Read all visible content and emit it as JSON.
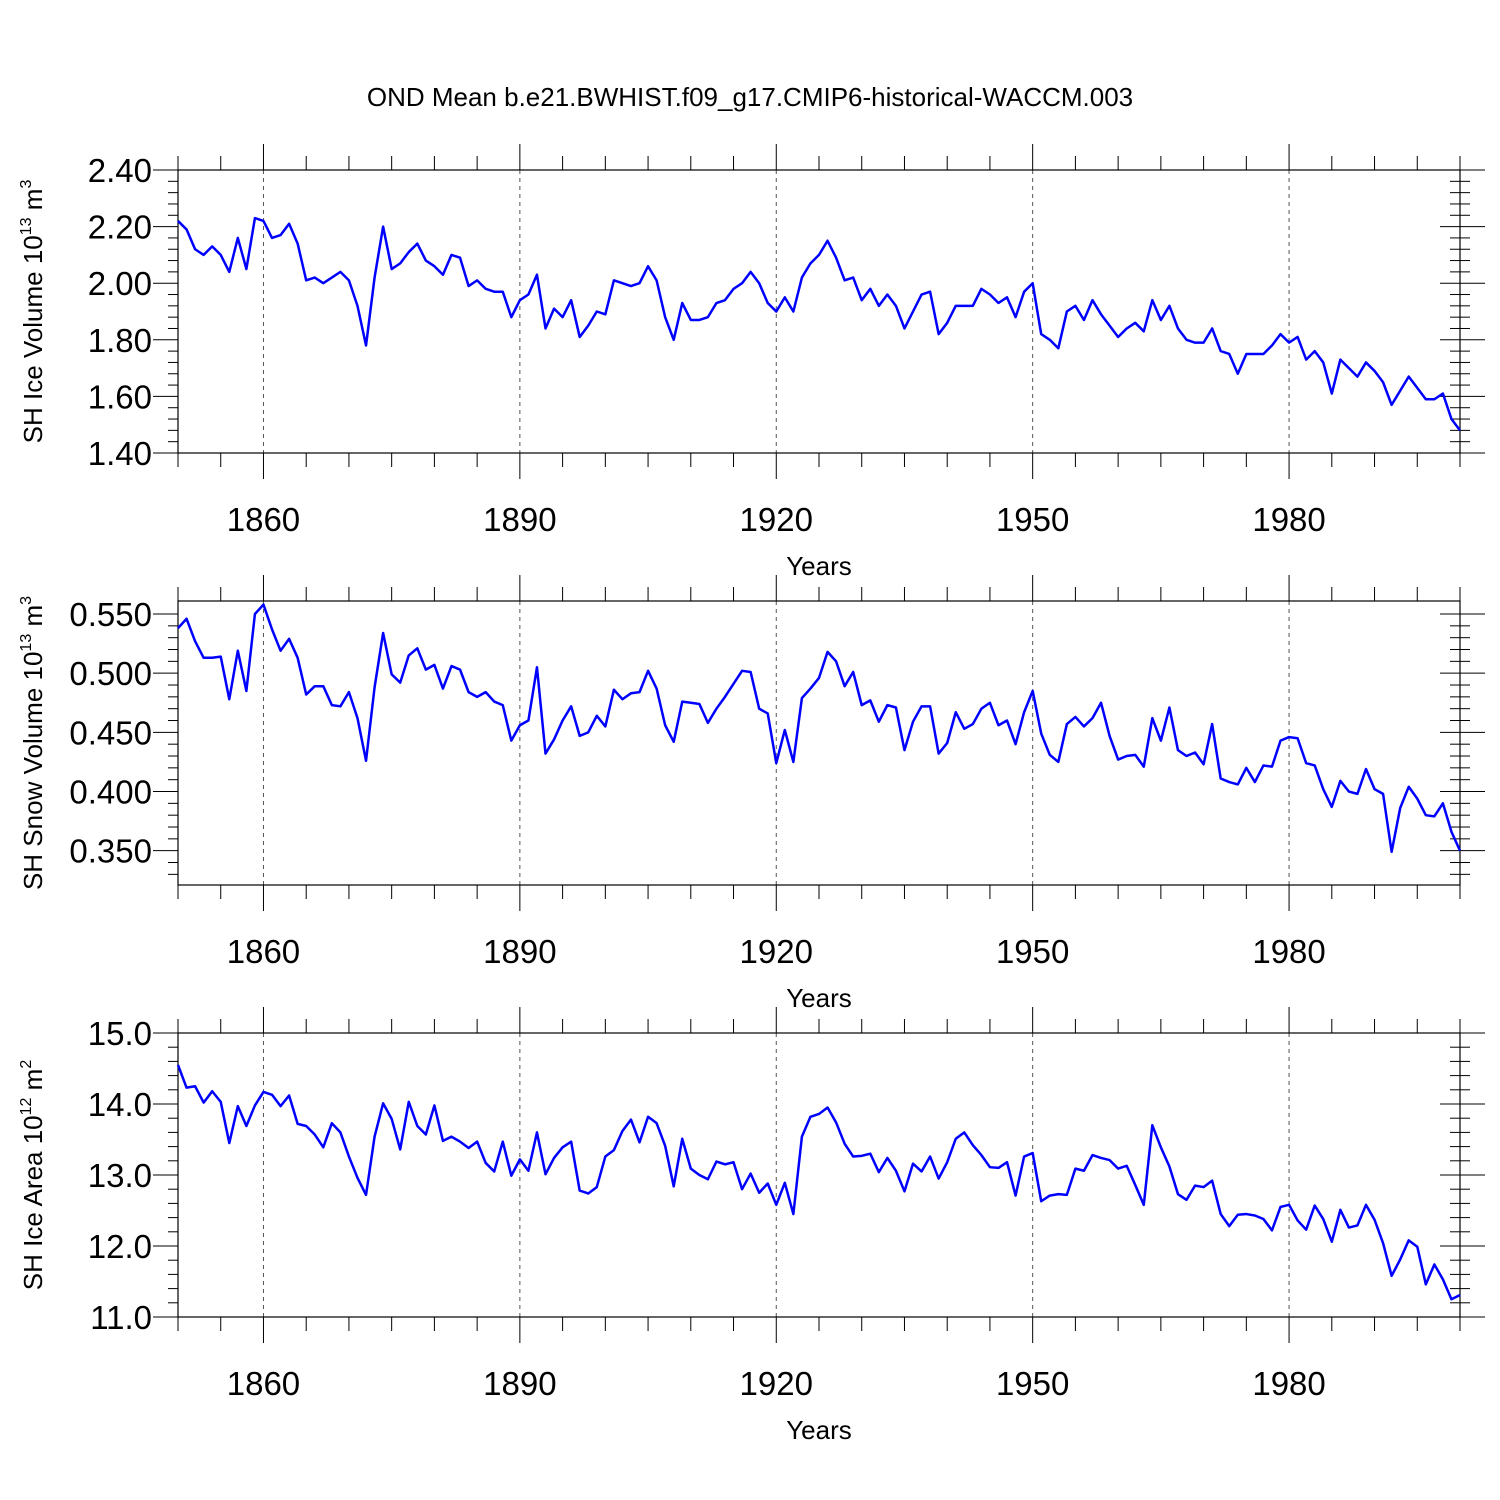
{
  "figure": {
    "title": "OND Mean b.e21.BWHIST.f09_g17.CMIP6-historical-WACCM.003"
  },
  "chart_data": [
    {
      "type": "line",
      "title": "",
      "xlabel": "Years",
      "ylabel": "SH Ice Volume 10",
      "ylabel_exponent": "13",
      "ylabel_unit": "m",
      "ylabel_unit_exponent": "3",
      "xlim": [
        1850,
        2000
      ],
      "ylim": [
        1.4,
        2.4
      ],
      "xticks": [
        1860,
        1890,
        1920,
        1950,
        1980
      ],
      "xtick_labels": [
        "1860",
        "1890",
        "1920",
        "1950",
        "1980"
      ],
      "yticks": [
        1.4,
        1.6,
        1.8,
        2.0,
        2.2,
        2.4
      ],
      "ytick_labels": [
        "1.40",
        "1.60",
        "1.80",
        "2.00",
        "2.20",
        "2.40"
      ],
      "grid": "vertical dashed at major x ticks",
      "color": "#0000ff",
      "x_start": 1850,
      "x_step": 1,
      "series": [
        {
          "values": [
            2.22,
            2.19,
            2.12,
            2.1,
            2.13,
            2.1,
            2.04,
            2.16,
            2.05,
            2.23,
            2.22,
            2.16,
            2.17,
            2.21,
            2.14,
            2.01,
            2.02,
            2.0,
            2.02,
            2.04,
            2.01,
            1.92,
            1.78,
            2.02,
            2.2,
            2.05,
            2.07,
            2.11,
            2.14,
            2.08,
            2.06,
            2.03,
            2.1,
            2.09,
            1.99,
            2.01,
            1.98,
            1.97,
            1.97,
            1.88,
            1.94,
            1.96,
            2.03,
            1.84,
            1.91,
            1.88,
            1.94,
            1.81,
            1.85,
            1.9,
            1.89,
            2.01,
            2.0,
            1.99,
            2.0,
            2.06,
            2.01,
            1.88,
            1.8,
            1.93,
            1.87,
            1.87,
            1.88,
            1.93,
            1.94,
            1.98,
            2.0,
            2.04,
            2.0,
            1.93,
            1.9,
            1.95,
            1.9,
            2.02,
            2.07,
            2.1,
            2.15,
            2.09,
            2.01,
            2.02,
            1.94,
            1.98,
            1.92,
            1.96,
            1.92,
            1.84,
            1.9,
            1.96,
            1.97,
            1.82,
            1.86,
            1.92,
            1.92,
            1.92,
            1.98,
            1.96,
            1.93,
            1.95,
            1.88,
            1.97,
            2.0,
            1.82,
            1.8,
            1.77,
            1.9,
            1.92,
            1.87,
            1.94,
            1.89,
            1.85,
            1.81,
            1.84,
            1.86,
            1.83,
            1.94,
            1.87,
            1.92,
            1.84,
            1.8,
            1.79,
            1.79,
            1.84,
            1.76,
            1.75,
            1.68,
            1.75,
            1.75,
            1.75,
            1.78,
            1.82,
            1.79,
            1.81,
            1.73,
            1.76,
            1.72,
            1.61,
            1.73,
            1.7,
            1.67,
            1.72,
            1.69,
            1.65,
            1.57,
            1.62,
            1.67,
            1.63,
            1.59,
            1.59,
            1.61,
            1.52,
            1.48
          ]
        }
      ]
    },
    {
      "type": "line",
      "title": "",
      "xlabel": "Years",
      "ylabel": "SH Snow Volume 10",
      "ylabel_exponent": "13",
      "ylabel_unit": "m",
      "ylabel_unit_exponent": "3",
      "xlim": [
        1850,
        2000
      ],
      "ylim": [
        0.321,
        0.561
      ],
      "xticks": [
        1860,
        1890,
        1920,
        1950,
        1980
      ],
      "xtick_labels": [
        "1860",
        "1890",
        "1920",
        "1950",
        "1980"
      ],
      "yticks": [
        0.35,
        0.4,
        0.45,
        0.5,
        0.55
      ],
      "ytick_labels": [
        "0.350",
        "0.400",
        "0.450",
        "0.500",
        "0.550"
      ],
      "grid": "vertical dashed at major x ticks",
      "color": "#0000ff",
      "x_start": 1850,
      "x_step": 1,
      "series": [
        {
          "values": [
            0.538,
            0.546,
            0.527,
            0.513,
            0.513,
            0.514,
            0.478,
            0.519,
            0.485,
            0.55,
            0.558,
            0.537,
            0.519,
            0.529,
            0.513,
            0.482,
            0.489,
            0.489,
            0.473,
            0.472,
            0.484,
            0.462,
            0.426,
            0.488,
            0.534,
            0.499,
            0.492,
            0.515,
            0.521,
            0.503,
            0.507,
            0.487,
            0.506,
            0.503,
            0.484,
            0.48,
            0.484,
            0.476,
            0.473,
            0.443,
            0.456,
            0.46,
            0.505,
            0.432,
            0.444,
            0.46,
            0.472,
            0.447,
            0.45,
            0.464,
            0.455,
            0.486,
            0.478,
            0.483,
            0.484,
            0.502,
            0.487,
            0.456,
            0.442,
            0.476,
            0.475,
            0.474,
            0.458,
            0.47,
            0.48,
            0.491,
            0.502,
            0.501,
            0.47,
            0.466,
            0.424,
            0.452,
            0.425,
            0.479,
            0.487,
            0.496,
            0.518,
            0.51,
            0.489,
            0.501,
            0.473,
            0.477,
            0.459,
            0.473,
            0.471,
            0.435,
            0.459,
            0.472,
            0.472,
            0.432,
            0.441,
            0.467,
            0.453,
            0.457,
            0.47,
            0.475,
            0.456,
            0.46,
            0.44,
            0.467,
            0.485,
            0.449,
            0.431,
            0.425,
            0.457,
            0.463,
            0.455,
            0.462,
            0.475,
            0.447,
            0.427,
            0.43,
            0.431,
            0.421,
            0.462,
            0.443,
            0.471,
            0.435,
            0.43,
            0.433,
            0.423,
            0.457,
            0.411,
            0.408,
            0.406,
            0.42,
            0.408,
            0.422,
            0.421,
            0.443,
            0.446,
            0.445,
            0.424,
            0.422,
            0.402,
            0.387,
            0.409,
            0.4,
            0.398,
            0.419,
            0.402,
            0.398,
            0.349,
            0.386,
            0.404,
            0.394,
            0.38,
            0.379,
            0.39,
            0.366,
            0.35
          ]
        }
      ]
    },
    {
      "type": "line",
      "title": "",
      "xlabel": "Years",
      "ylabel": "SH Ice Area 10",
      "ylabel_exponent": "12",
      "ylabel_unit": "m",
      "ylabel_unit_exponent": "2",
      "xlim": [
        1850,
        2000
      ],
      "ylim": [
        11.0,
        15.0
      ],
      "xticks": [
        1860,
        1890,
        1920,
        1950,
        1980
      ],
      "xtick_labels": [
        "1860",
        "1890",
        "1920",
        "1950",
        "1980"
      ],
      "yticks": [
        11.0,
        12.0,
        13.0,
        14.0,
        15.0
      ],
      "ytick_labels": [
        "11.0",
        "12.0",
        "13.0",
        "14.0",
        "15.0"
      ],
      "grid": "vertical dashed at major x ticks",
      "color": "#0000ff",
      "x_start": 1850,
      "x_step": 1,
      "series": [
        {
          "values": [
            14.55,
            14.23,
            14.25,
            14.02,
            14.18,
            14.03,
            13.45,
            13.97,
            13.69,
            13.98,
            14.17,
            14.13,
            13.97,
            14.12,
            13.72,
            13.69,
            13.57,
            13.39,
            13.73,
            13.6,
            13.26,
            12.96,
            12.72,
            13.54,
            14.01,
            13.79,
            13.36,
            14.03,
            13.69,
            13.57,
            13.98,
            13.48,
            13.54,
            13.47,
            13.38,
            13.47,
            13.17,
            13.05,
            13.47,
            12.99,
            13.22,
            13.06,
            13.6,
            13.01,
            13.24,
            13.39,
            13.47,
            12.78,
            12.74,
            12.83,
            13.26,
            13.35,
            13.62,
            13.78,
            13.46,
            13.82,
            13.73,
            13.41,
            12.84,
            13.51,
            13.09,
            13.0,
            12.94,
            13.19,
            13.15,
            13.18,
            12.8,
            13.02,
            12.75,
            12.88,
            12.58,
            12.89,
            12.45,
            13.54,
            13.82,
            13.86,
            13.95,
            13.74,
            13.44,
            13.26,
            13.27,
            13.3,
            13.04,
            13.24,
            13.06,
            12.77,
            13.16,
            13.05,
            13.26,
            12.95,
            13.18,
            13.51,
            13.6,
            13.42,
            13.28,
            13.11,
            13.1,
            13.18,
            12.71,
            13.26,
            13.31,
            12.63,
            12.71,
            12.73,
            12.72,
            13.09,
            13.06,
            13.28,
            13.24,
            13.21,
            13.09,
            13.13,
            12.86,
            12.58,
            13.7,
            13.39,
            13.12,
            12.73,
            12.65,
            12.85,
            12.83,
            12.92,
            12.45,
            12.28,
            12.44,
            12.45,
            12.43,
            12.38,
            12.22,
            12.55,
            12.58,
            12.36,
            12.23,
            12.57,
            12.38,
            12.06,
            12.51,
            12.26,
            12.29,
            12.58,
            12.37,
            12.04,
            11.58,
            11.81,
            12.08,
            11.99,
            11.46,
            11.74,
            11.53,
            11.25,
            11.31
          ]
        }
      ]
    }
  ]
}
